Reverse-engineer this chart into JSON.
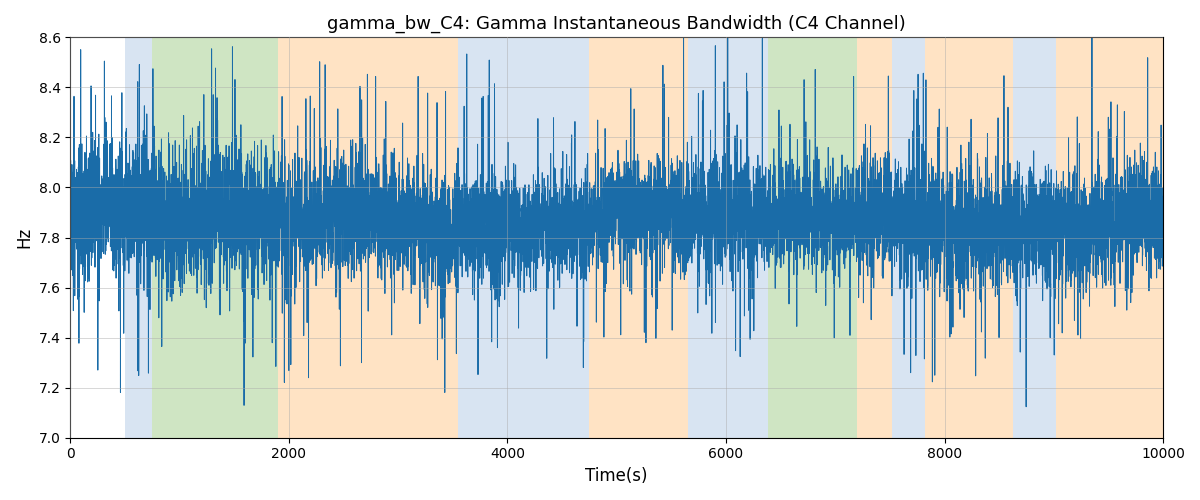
{
  "title": "gamma_bw_C4: Gamma Instantaneous Bandwidth (C4 Channel)",
  "xlabel": "Time(s)",
  "ylabel": "Hz",
  "xlim": [
    0,
    10000
  ],
  "ylim": [
    7.0,
    8.6
  ],
  "yticks": [
    7.0,
    7.2,
    7.4,
    7.6,
    7.8,
    8.0,
    8.2,
    8.4,
    8.6
  ],
  "xticks": [
    0,
    2000,
    4000,
    6000,
    8000,
    10000
  ],
  "line_color": "#1a6ca8",
  "line_width": 0.7,
  "background_color": "#ffffff",
  "grid_color": "#aaaaaa",
  "bands": [
    {
      "xmin": 500,
      "xmax": 750,
      "color": "#b8cfe8",
      "alpha": 0.55
    },
    {
      "xmin": 750,
      "xmax": 1900,
      "color": "#a0cc88",
      "alpha": 0.5
    },
    {
      "xmin": 1900,
      "xmax": 2250,
      "color": "#ffc88a",
      "alpha": 0.5
    },
    {
      "xmin": 2250,
      "xmax": 3550,
      "color": "#ffc88a",
      "alpha": 0.5
    },
    {
      "xmin": 3550,
      "xmax": 3800,
      "color": "#b8cfe8",
      "alpha": 0.55
    },
    {
      "xmin": 3800,
      "xmax": 4750,
      "color": "#b8cfe8",
      "alpha": 0.55
    },
    {
      "xmin": 4750,
      "xmax": 5050,
      "color": "#ffc88a",
      "alpha": 0.5
    },
    {
      "xmin": 5050,
      "xmax": 5650,
      "color": "#ffc88a",
      "alpha": 0.5
    },
    {
      "xmin": 5650,
      "xmax": 5900,
      "color": "#b8cfe8",
      "alpha": 0.55
    },
    {
      "xmin": 5900,
      "xmax": 6200,
      "color": "#b8cfe8",
      "alpha": 0.55
    },
    {
      "xmin": 6200,
      "xmax": 6380,
      "color": "#b8cfe8",
      "alpha": 0.55
    },
    {
      "xmin": 6380,
      "xmax": 7200,
      "color": "#a0cc88",
      "alpha": 0.5
    },
    {
      "xmin": 7200,
      "xmax": 7520,
      "color": "#ffc88a",
      "alpha": 0.5
    },
    {
      "xmin": 7520,
      "xmax": 7820,
      "color": "#b8cfe8",
      "alpha": 0.55
    },
    {
      "xmin": 7820,
      "xmax": 8630,
      "color": "#ffc88a",
      "alpha": 0.5
    },
    {
      "xmin": 8630,
      "xmax": 9020,
      "color": "#b8cfe8",
      "alpha": 0.55
    },
    {
      "xmin": 9020,
      "xmax": 10000,
      "color": "#ffc88a",
      "alpha": 0.5
    }
  ],
  "figsize": [
    12,
    5
  ],
  "dpi": 100
}
